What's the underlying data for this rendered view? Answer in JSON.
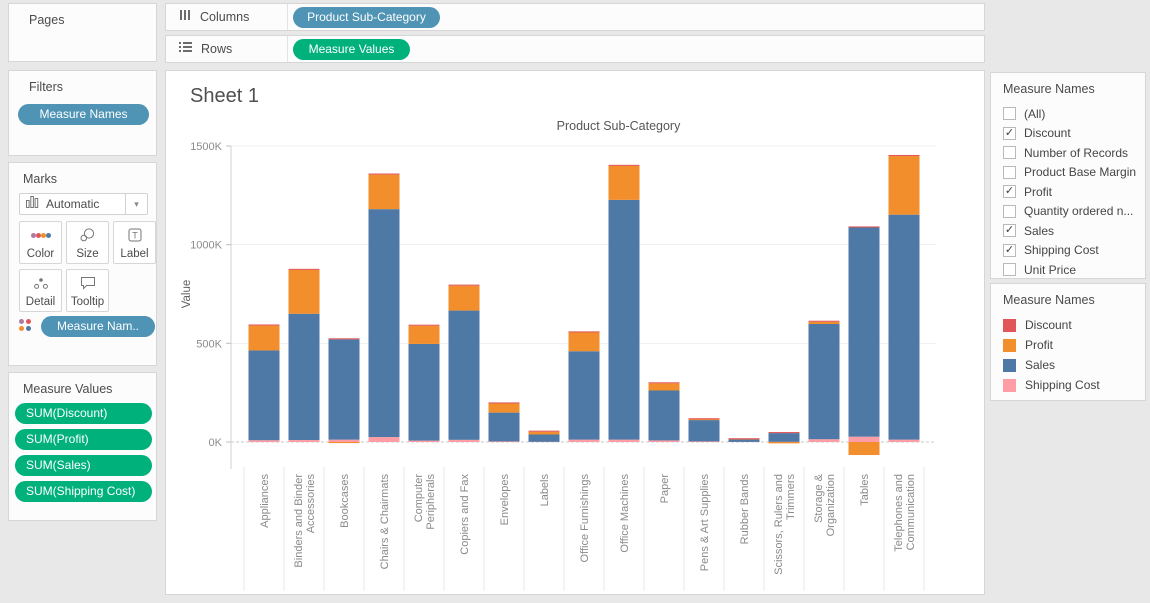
{
  "left": {
    "pages": {
      "title": "Pages"
    },
    "filters": {
      "title": "Filters",
      "pill": "Measure Names"
    },
    "marks": {
      "title": "Marks",
      "mark_type": "Automatic",
      "buttons": [
        "Color",
        "Size",
        "Label",
        "Detail",
        "Tooltip"
      ],
      "pill": "Measure Nam..",
      "color_dots": [
        "#b07aa1",
        "#e15759",
        "#f28e2b",
        "#4e79a7"
      ]
    },
    "measure_values": {
      "title": "Measure Values",
      "pills": [
        "SUM(Discount)",
        "SUM(Profit)",
        "SUM(Sales)",
        "SUM(Shipping Cost)"
      ]
    }
  },
  "shelves": {
    "columns": {
      "label": "Columns",
      "pill": "Product Sub-Category"
    },
    "rows": {
      "label": "Rows",
      "pill": "Measure Values"
    }
  },
  "sheet": {
    "title": "Sheet 1"
  },
  "right": {
    "filter_card": {
      "title": "Measure Names",
      "items": [
        {
          "label": "(All)",
          "checked": false
        },
        {
          "label": "Discount",
          "checked": true
        },
        {
          "label": "Number of Records",
          "checked": false
        },
        {
          "label": "Product Base Margin",
          "checked": false
        },
        {
          "label": "Profit",
          "checked": true
        },
        {
          "label": "Quantity ordered n...",
          "checked": false
        },
        {
          "label": "Sales",
          "checked": true
        },
        {
          "label": "Shipping Cost",
          "checked": true
        },
        {
          "label": "Unit Price",
          "checked": false
        }
      ]
    },
    "legend_card": {
      "title": "Measure Names",
      "items": [
        {
          "label": "Discount",
          "color": "#e15759"
        },
        {
          "label": "Profit",
          "color": "#f28e2b"
        },
        {
          "label": "Sales",
          "color": "#4e79a7"
        },
        {
          "label": "Shipping Cost",
          "color": "#ff9da7"
        }
      ]
    }
  },
  "chart_data": {
    "type": "bar",
    "stacked": true,
    "title": "Product Sub-Category",
    "ylabel": "Value",
    "ylim_k": [
      0,
      1500
    ],
    "yticks": [
      {
        "label": "0K",
        "value": 0
      },
      {
        "label": "500K",
        "value": 500
      },
      {
        "label": "1000K",
        "value": 1000
      },
      {
        "label": "1500K",
        "value": 1500
      }
    ],
    "grid": "light horizontal gridlines at 500K steps, dashed zero line",
    "categories": [
      "Appliances",
      "Binders and Binder Accessories",
      "Bookcases",
      "Chairs & Chairmats",
      "Computer Peripherals",
      "Copiers and Fax",
      "Envelopes",
      "Labels",
      "Office Furnishings",
      "Office Machines",
      "Paper",
      "Pens & Art Supplies",
      "Rubber Bands",
      "Scissors, Rulers and Trimmers",
      "Storage & Organization",
      "Tables",
      "Telephones and Communication"
    ],
    "category_label_lines": [
      [
        "Appliances"
      ],
      [
        "Binders and Binder",
        "Accessories"
      ],
      [
        "Bookcases"
      ],
      [
        "Chairs & Chairmats"
      ],
      [
        "Computer",
        "Peripherals"
      ],
      [
        "Copiers and Fax"
      ],
      [
        "Envelopes"
      ],
      [
        "Labels"
      ],
      [
        "Office Furnishings"
      ],
      [
        "Office Machines"
      ],
      [
        "Paper"
      ],
      [
        "Pens & Art Supplies"
      ],
      [
        "Rubber Bands"
      ],
      [
        "Scissors, Rulers and",
        "Trimmers"
      ],
      [
        "Storage &",
        "Organization"
      ],
      [
        "Tables"
      ],
      [
        "Telephones and",
        "Communication"
      ]
    ],
    "series_stack_order_bottom_to_top": [
      "Shipping Cost",
      "Sales",
      "Profit",
      "Discount"
    ],
    "series": [
      {
        "name": "Shipping Cost",
        "color": "#ff9da7",
        "values_k": [
          9,
          10,
          12,
          25,
          7,
          11,
          3,
          1,
          12,
          12,
          8,
          3,
          0.5,
          1,
          14,
          27,
          12
        ]
      },
      {
        "name": "Sales",
        "color": "#4e79a7",
        "values_k": [
          455,
          640,
          508,
          1155,
          490,
          655,
          146,
          37,
          448,
          1215,
          253,
          108,
          12,
          44,
          584,
          1060,
          1140
        ]
      },
      {
        "name": "Profit",
        "color": "#f28e2b",
        "values_k": [
          126,
          222,
          -3,
          175,
          92,
          126,
          46,
          14,
          95,
          172,
          36,
          4,
          1,
          -7,
          11,
          -66,
          297
        ]
      },
      {
        "name": "Discount",
        "color": "#e15759",
        "values_k": [
          2,
          3,
          2,
          3,
          2,
          2,
          1,
          1,
          2,
          3,
          2,
          1,
          0.5,
          1,
          2,
          2,
          3
        ]
      }
    ]
  }
}
